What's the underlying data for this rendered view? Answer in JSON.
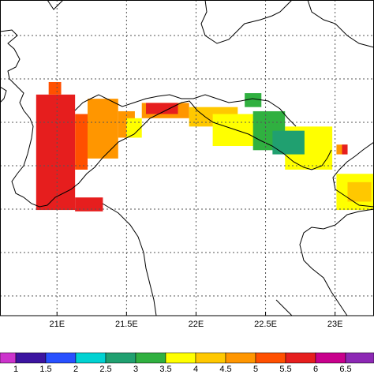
{
  "map": {
    "xlim": [
      20.59,
      23.28
    ],
    "ylim": [
      37.73,
      40.0
    ],
    "xticks": [
      {
        "value": 21,
        "label": "21E"
      },
      {
        "value": 21.5,
        "label": "21.5E"
      },
      {
        "value": 22,
        "label": "22E"
      },
      {
        "value": 22.5,
        "label": "22.5E"
      },
      {
        "value": 23,
        "label": "23E"
      }
    ],
    "blocks": [
      {
        "lon": [
          20.85,
          21.13
        ],
        "lat": [
          38.49,
          39.32
        ],
        "value": 5.7
      },
      {
        "lon": [
          20.94,
          21.03
        ],
        "lat": [
          39.32,
          39.41
        ],
        "value": 5.2
      },
      {
        "lon": [
          21.13,
          21.22
        ],
        "lat": [
          38.78,
          39.18
        ],
        "value": 5.3
      },
      {
        "lon": [
          21.13,
          21.33
        ],
        "lat": [
          38.48,
          38.58
        ],
        "value": 5.7
      },
      {
        "lon": [
          21.22,
          21.44
        ],
        "lat": [
          38.86,
          39.29
        ],
        "value": 4.7
      },
      {
        "lon": [
          21.44,
          21.56
        ],
        "lat": [
          39.01,
          39.2
        ],
        "value": 4.7
      },
      {
        "lon": [
          21.5,
          21.61
        ],
        "lat": [
          39.01,
          39.15
        ],
        "value": 3.8
      },
      {
        "lon": [
          21.61,
          21.95
        ],
        "lat": [
          39.15,
          39.26
        ],
        "value": 4.7
      },
      {
        "lon": [
          21.64,
          21.87
        ],
        "lat": [
          39.18,
          39.26
        ],
        "value": 5.7
      },
      {
        "lon": [
          21.95,
          22.3
        ],
        "lat": [
          39.09,
          39.23
        ],
        "value": 4.3
      },
      {
        "lon": [
          22.12,
          22.52
        ],
        "lat": [
          38.95,
          39.18
        ],
        "value": 3.8
      },
      {
        "lon": [
          22.64,
          22.98
        ],
        "lat": [
          38.78,
          39.09
        ],
        "value": 3.8
      },
      {
        "lon": [
          22.35,
          22.47
        ],
        "lat": [
          39.23,
          39.33
        ],
        "value": 3.2
      },
      {
        "lon": [
          22.41,
          22.64
        ],
        "lat": [
          38.92,
          39.2
        ],
        "value": 3.2
      },
      {
        "lon": [
          22.55,
          22.78
        ],
        "lat": [
          38.89,
          39.06
        ],
        "value": 2.8
      },
      {
        "lon": [
          23.01,
          23.09
        ],
        "lat": [
          38.89,
          38.96
        ],
        "value": 4.7
      },
      {
        "lon": [
          23.05,
          23.09
        ],
        "lat": [
          38.89,
          38.96
        ],
        "value": 5.5
      },
      {
        "lon": [
          23.01,
          23.28
        ],
        "lat": [
          38.49,
          38.75
        ],
        "value": 3.8
      },
      {
        "lon": [
          23.09,
          23.26
        ],
        "lat": [
          38.55,
          38.69
        ],
        "value": 4.2
      }
    ],
    "colorbar": {
      "levels": [
        1,
        1.5,
        2,
        2.5,
        3,
        3.5,
        4,
        4.5,
        5,
        5.5,
        6,
        6.5
      ],
      "colors": [
        "#cc33cc",
        "#3c14a0",
        "#2850ff",
        "#00d2d2",
        "#20a070",
        "#30b040",
        "#ffff00",
        "#ffc800",
        "#ff9600",
        "#ff5000",
        "#e61e1e",
        "#c8008c",
        "#8c28b4"
      ]
    }
  }
}
